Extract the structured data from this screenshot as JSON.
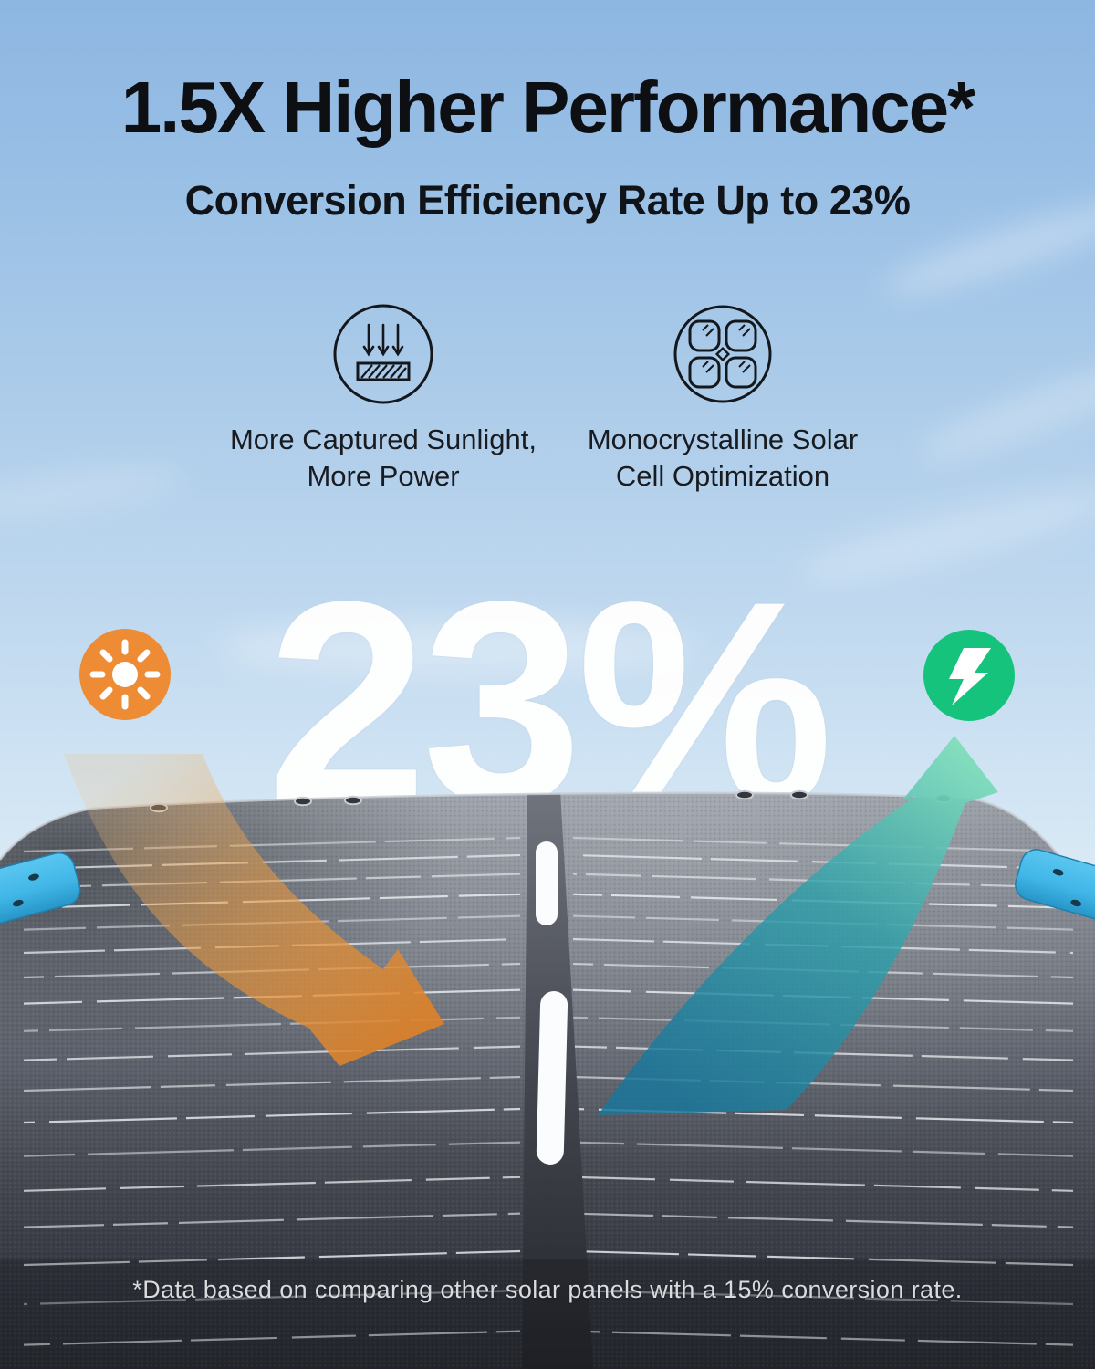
{
  "header": {
    "title": "1.5X Higher Performance*",
    "subtitle": "Conversion Efficiency Rate Up to 23%"
  },
  "features": [
    {
      "icon": "sunlight-capture-icon",
      "caption": "More Captured Sunlight,\nMore Power"
    },
    {
      "icon": "monocrystalline-cells-icon",
      "caption": "Monocrystalline Solar\nCell Optimization"
    }
  ],
  "highlight": {
    "value": "23%"
  },
  "badges": [
    {
      "icon": "sun-icon",
      "side": "left"
    },
    {
      "icon": "lightning-bolt-icon",
      "side": "right"
    }
  ],
  "footnote": "*Data based on comparing other solar panels with a 15% conversion rate.",
  "palette": {
    "sun_orange": "#ee8b35",
    "bolt_green": "#15c37d",
    "arrow_orange": "#e08a32",
    "arrow_teal": "#2d9fae",
    "arrow_tip_green": "#82debb",
    "clip_blue": "#41b7e8",
    "sky_top": "#8db6e1",
    "panel_dark": "#2c2f36"
  }
}
